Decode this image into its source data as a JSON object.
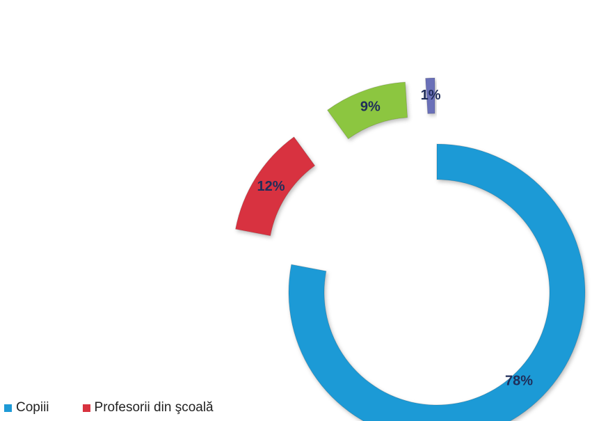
{
  "chart_data": {
    "type": "pie",
    "style": "exploded doughnut",
    "categories": [
      "Copiii",
      "Profesorii din şcoală",
      "",
      ""
    ],
    "values": [
      78,
      12,
      9,
      1
    ],
    "labels": [
      "78%",
      "12%",
      "9%",
      "1%"
    ],
    "colors": [
      "#1e9ad6",
      "#d8333f",
      "#8cc63f",
      "#6a6fb8"
    ],
    "legend": {
      "position": "bottom-left",
      "items": [
        {
          "label": "Copiii",
          "color": "#1e9ad6"
        },
        {
          "label": "Profesorii din şcoală",
          "color": "#d8333f"
        }
      ]
    }
  }
}
